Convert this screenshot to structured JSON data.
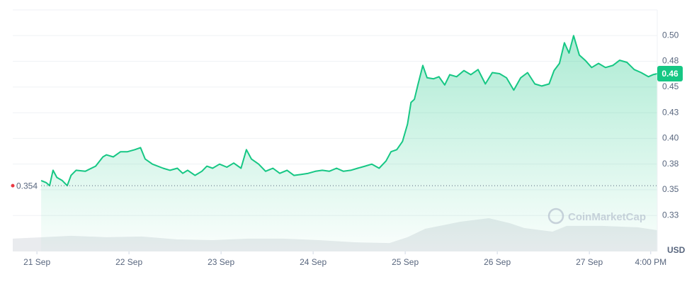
{
  "chart_data": {
    "type": "line",
    "currency": "USD",
    "watermark": "CoinMarketCap",
    "xlim": [
      -6.3,
      161.7
    ],
    "xticks": [
      {
        "value": 0,
        "label": "21 Sep"
      },
      {
        "value": 24,
        "label": "22 Sep"
      },
      {
        "value": 48,
        "label": "23 Sep"
      },
      {
        "value": 72,
        "label": "24 Sep"
      },
      {
        "value": 96,
        "label": "25 Sep"
      },
      {
        "value": 120,
        "label": "26 Sep"
      },
      {
        "value": 144,
        "label": "27 Sep"
      },
      {
        "value": 160,
        "label": "4:00 PM"
      }
    ],
    "ylim": [
      0.29,
      0.525
    ],
    "yticks": [
      {
        "value": 0.325,
        "label": "0.33"
      },
      0.35,
      {
        "value": 0.375,
        "label": "0.38"
      },
      {
        "value": 0.4,
        "label": "0.40"
      },
      {
        "value": 0.425,
        "label": "0.43"
      },
      0.45,
      {
        "value": 0.475,
        "label": "0.48"
      },
      {
        "value": 0.5,
        "label": "0.50"
      }
    ],
    "grid": true,
    "reference_line": 0.354,
    "current_price": {
      "value": 0.463,
      "label": "0.46"
    },
    "color": "#16c784",
    "x": [
      1.1,
      2.4,
      3.3,
      4.2,
      5.2,
      6.6,
      7.9,
      8.9,
      10.2,
      12.6,
      15.3,
      17.2,
      18.1,
      19.9,
      21.8,
      23.6,
      25.5,
      27.0,
      28.2,
      30.1,
      32.9,
      34.7,
      36.6,
      38.0,
      39.3,
      41.2,
      43.0,
      44.3,
      45.8,
      47.6,
      49.5,
      51.3,
      53.2,
      54.6,
      55.9,
      57.8,
      59.6,
      61.5,
      63.3,
      65.2,
      67.0,
      68.9,
      70.7,
      72.6,
      74.4,
      76.2,
      78.1,
      79.9,
      81.8,
      83.6,
      85.5,
      87.3,
      89.2,
      91.0,
      92.3,
      93.8,
      95.3,
      96.6,
      97.5,
      98.4,
      99.3,
      100.6,
      101.7,
      103.4,
      104.8,
      106.3,
      107.6,
      109.4,
      111.3,
      113.1,
      115.0,
      116.9,
      118.7,
      120.6,
      122.4,
      124.3,
      126.1,
      127.9,
      129.8,
      131.6,
      133.5,
      134.8,
      136.2,
      137.5,
      138.7,
      139.9,
      141.4,
      142.9,
      144.6,
      146.4,
      148.2,
      150.1,
      151.9,
      153.8,
      155.7,
      157.5,
      159.4,
      160.6,
      161.7
    ],
    "values": [
      0.359,
      0.357,
      0.354,
      0.369,
      0.362,
      0.359,
      0.354,
      0.364,
      0.369,
      0.368,
      0.373,
      0.382,
      0.384,
      0.382,
      0.387,
      0.387,
      0.389,
      0.391,
      0.38,
      0.375,
      0.371,
      0.369,
      0.371,
      0.366,
      0.369,
      0.364,
      0.368,
      0.373,
      0.371,
      0.375,
      0.372,
      0.376,
      0.371,
      0.389,
      0.38,
      0.375,
      0.368,
      0.371,
      0.366,
      0.369,
      0.364,
      0.365,
      0.366,
      0.368,
      0.369,
      0.368,
      0.371,
      0.368,
      0.369,
      0.371,
      0.373,
      0.375,
      0.371,
      0.378,
      0.387,
      0.389,
      0.397,
      0.414,
      0.435,
      0.438,
      0.452,
      0.471,
      0.459,
      0.458,
      0.46,
      0.452,
      0.462,
      0.46,
      0.466,
      0.462,
      0.467,
      0.453,
      0.464,
      0.463,
      0.459,
      0.447,
      0.459,
      0.464,
      0.453,
      0.451,
      0.453,
      0.466,
      0.473,
      0.493,
      0.483,
      0.5,
      0.481,
      0.476,
      0.469,
      0.473,
      0.469,
      0.471,
      0.476,
      0.474,
      0.467,
      0.464,
      0.46,
      0.462,
      0.463
    ],
    "y2lim": [
      0,
      100
    ],
    "volume": {
      "color": "#e9ebee",
      "axis": "y2",
      "x": [
        -6.3,
        1.5,
        8.9,
        18.1,
        27.3,
        36.6,
        45.8,
        55.0,
        64.2,
        73.5,
        82.7,
        91.9,
        96.6,
        101.2,
        110.4,
        117.8,
        123.3,
        127.0,
        134.4,
        138.1,
        147.3,
        156.6,
        161.7
      ],
      "values": [
        5.3,
        5.9,
        6.5,
        5.9,
        6.2,
        5.0,
        4.7,
        5.3,
        5.3,
        4.7,
        3.8,
        3.5,
        5.9,
        9.4,
        12.3,
        13.8,
        11.7,
        9.7,
        8.2,
        10.6,
        10.6,
        10.0,
        8.8
      ]
    }
  }
}
